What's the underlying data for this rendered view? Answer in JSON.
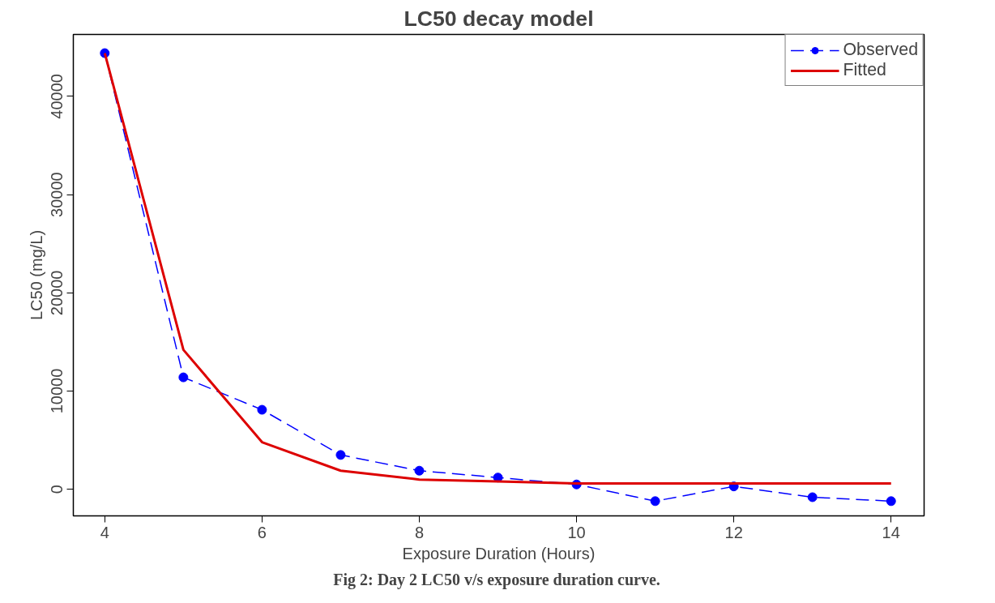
{
  "chart_data": {
    "type": "line",
    "title": "LC50 decay model",
    "xlabel": "Exposure Duration (Hours)",
    "ylabel": "LC50 (mg/L)",
    "annotations": [
      "Fig 2: Day 2 LC50  v/s exposure duration curve."
    ],
    "x": [
      4,
      5,
      6,
      7,
      8,
      9,
      10,
      11,
      12,
      13,
      14
    ],
    "series": [
      {
        "name": "Observed",
        "color": "#0000ff",
        "values": [
          44400,
          11400,
          8100,
          3500,
          1900,
          1200,
          500,
          -1200,
          300,
          -800,
          -1200
        ],
        "marker": "circle",
        "line_style": "dashed"
      },
      {
        "name": "Fitted",
        "color": "#dd0000",
        "values": [
          44400,
          14200,
          4800,
          1900,
          1000,
          800,
          600,
          600,
          600,
          600,
          600
        ],
        "marker": "none",
        "line_style": "solid"
      }
    ],
    "xlim": [
      3.6,
      14.42
    ],
    "ylim": [
      -2700,
      46300
    ],
    "xticks": [
      4,
      6,
      8,
      10,
      12,
      14
    ],
    "yticks": [
      0,
      10000,
      20000,
      30000,
      40000
    ],
    "grid": false,
    "legend": "top right"
  }
}
